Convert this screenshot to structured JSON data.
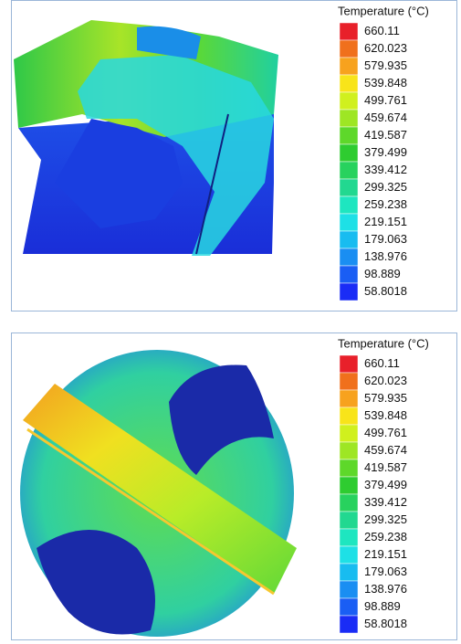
{
  "panels": [
    {
      "legend": {
        "title": "Temperature (°C)",
        "labels": [
          "660.11",
          "620.023",
          "579.935",
          "539.848",
          "499.761",
          "459.674",
          "419.587",
          "379.499",
          "339.412",
          "299.325",
          "259.238",
          "219.151",
          "179.063",
          "138.976",
          "98.889",
          "58.8018"
        ],
        "colors": [
          "#e8202a",
          "#f0701c",
          "#f7a21e",
          "#f8e41a",
          "#d0f01e",
          "#9ee624",
          "#5ed82a",
          "#2ecc30",
          "#28d25e",
          "#22d890",
          "#1ee6c0",
          "#1ee0e6",
          "#18bcf0",
          "#1a8ef2",
          "#1a5ef4",
          "#1a2cf6"
        ]
      }
    },
    {
      "legend": {
        "title": "Temperature (°C)",
        "labels": [
          "660.11",
          "620.023",
          "579.935",
          "539.848",
          "499.761",
          "459.674",
          "419.587",
          "379.499",
          "339.412",
          "299.325",
          "259.238",
          "219.151",
          "179.063",
          "138.976",
          "98.889",
          "58.8018"
        ],
        "colors": [
          "#e8202a",
          "#f0701c",
          "#f7a21e",
          "#f8e41a",
          "#d0f01e",
          "#9ee624",
          "#5ed82a",
          "#2ecc30",
          "#28d25e",
          "#22d890",
          "#1ee6c0",
          "#1ee0e6",
          "#18bcf0",
          "#1a8ef2",
          "#1a5ef4",
          "#1a2cf6"
        ]
      }
    }
  ]
}
